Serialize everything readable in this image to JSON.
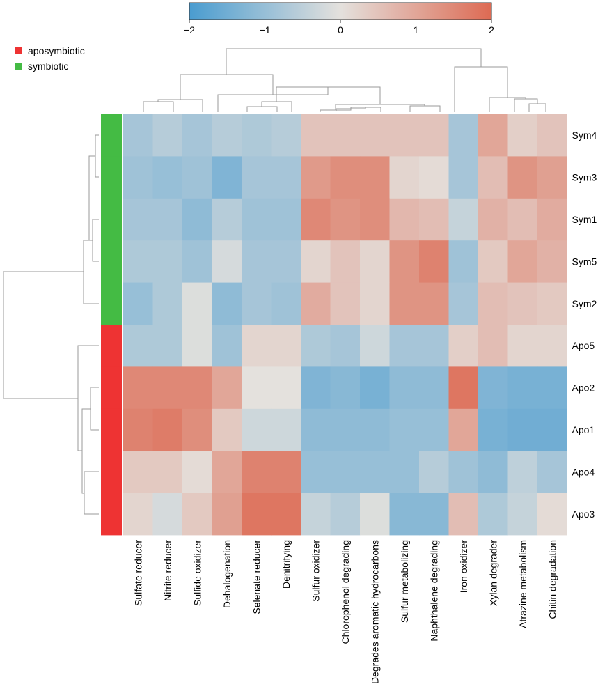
{
  "chart_data": {
    "type": "heatmap",
    "title": "",
    "xlabel": "",
    "ylabel": "",
    "columns": [
      "Sulfate reducer",
      "Nitrite reducer",
      "Sulfide oxidizer",
      "Dehalogenation",
      "Selenate reducer",
      "Denitrifying",
      "Sulfur oxidizer",
      "Chlorophenol degrading",
      "Degrades aromatic hydrocarbons",
      "Sulfur metabolizing",
      "Naphthalene degrading",
      "Iron oxidizer",
      "Xylan degrader",
      "Atrazine metabolism",
      "Chitin degradation"
    ],
    "rows": [
      "Sym4",
      "Sym3",
      "Sym1",
      "Sym5",
      "Sym2",
      "Apo5",
      "Apo2",
      "Apo1",
      "Apo4",
      "Apo3"
    ],
    "row_groups": [
      "symbiotic",
      "symbiotic",
      "symbiotic",
      "symbiotic",
      "symbiotic",
      "aposymbiotic",
      "aposymbiotic",
      "aposymbiotic",
      "aposymbiotic",
      "aposymbiotic"
    ],
    "values": [
      [
        -0.8,
        -0.6,
        -0.8,
        -0.6,
        -0.7,
        -0.6,
        0.5,
        0.5,
        0.5,
        0.5,
        0.5,
        -0.8,
        1.0,
        0.3,
        0.5
      ],
      [
        -0.9,
        -1.0,
        -0.9,
        -1.3,
        -0.8,
        -0.8,
        1.2,
        1.4,
        1.4,
        0.2,
        0.1,
        -0.8,
        0.6,
        1.3,
        1.1
      ],
      [
        -0.8,
        -0.8,
        -1.1,
        -0.6,
        -0.9,
        -0.9,
        1.5,
        1.3,
        1.4,
        0.7,
        0.6,
        -0.4,
        0.8,
        0.6,
        0.9
      ],
      [
        -0.7,
        -0.7,
        -0.9,
        -0.2,
        -0.8,
        -0.8,
        0.2,
        0.5,
        0.2,
        1.3,
        1.6,
        -0.9,
        0.4,
        1.0,
        0.8
      ],
      [
        -1.0,
        -0.7,
        -0.1,
        -1.1,
        -0.8,
        -0.9,
        0.9,
        0.5,
        0.2,
        1.3,
        1.3,
        -0.8,
        0.6,
        0.5,
        0.4
      ],
      [
        -0.7,
        -0.7,
        -0.1,
        -0.9,
        0.2,
        0.2,
        -0.7,
        -0.8,
        -0.3,
        -0.8,
        -0.8,
        0.3,
        0.6,
        0.2,
        0.2
      ],
      [
        1.5,
        1.5,
        1.5,
        1.0,
        0.0,
        0.0,
        -1.3,
        -1.2,
        -1.4,
        -1.1,
        -1.1,
        1.8,
        -1.3,
        -1.4,
        -1.4
      ],
      [
        1.6,
        1.7,
        1.4,
        0.4,
        -0.3,
        -0.3,
        -1.1,
        -1.1,
        -1.1,
        -1.0,
        -1.0,
        1.0,
        -1.4,
        -1.5,
        -1.5
      ],
      [
        0.4,
        0.4,
        0.1,
        1.0,
        1.6,
        1.6,
        -1.0,
        -1.0,
        -1.0,
        -1.0,
        -0.6,
        -0.9,
        -1.1,
        -0.5,
        -0.8
      ],
      [
        0.2,
        -0.2,
        0.4,
        1.1,
        1.8,
        1.8,
        -0.4,
        -0.6,
        -0.1,
        -1.2,
        -1.2,
        0.6,
        -0.7,
        -0.4,
        0.1
      ]
    ],
    "colorbar": {
      "range": [
        -2,
        2
      ],
      "ticks": [
        -2,
        -1,
        0,
        1,
        2
      ],
      "tick_labels": [
        "−2",
        "−1",
        "0",
        "1",
        "2"
      ],
      "low_color": "#4a9cd0",
      "mid_color": "#e4e1dd",
      "high_color": "#dd6a53"
    },
    "legend": [
      {
        "label": "aposymbiotic",
        "color": "#ee3333"
      },
      {
        "label": "symbiotic",
        "color": "#44bb44"
      }
    ],
    "legend_placement": "top-left",
    "group_colors": {
      "aposymbiotic": "#ee3333",
      "symbiotic": "#44bb44"
    }
  }
}
